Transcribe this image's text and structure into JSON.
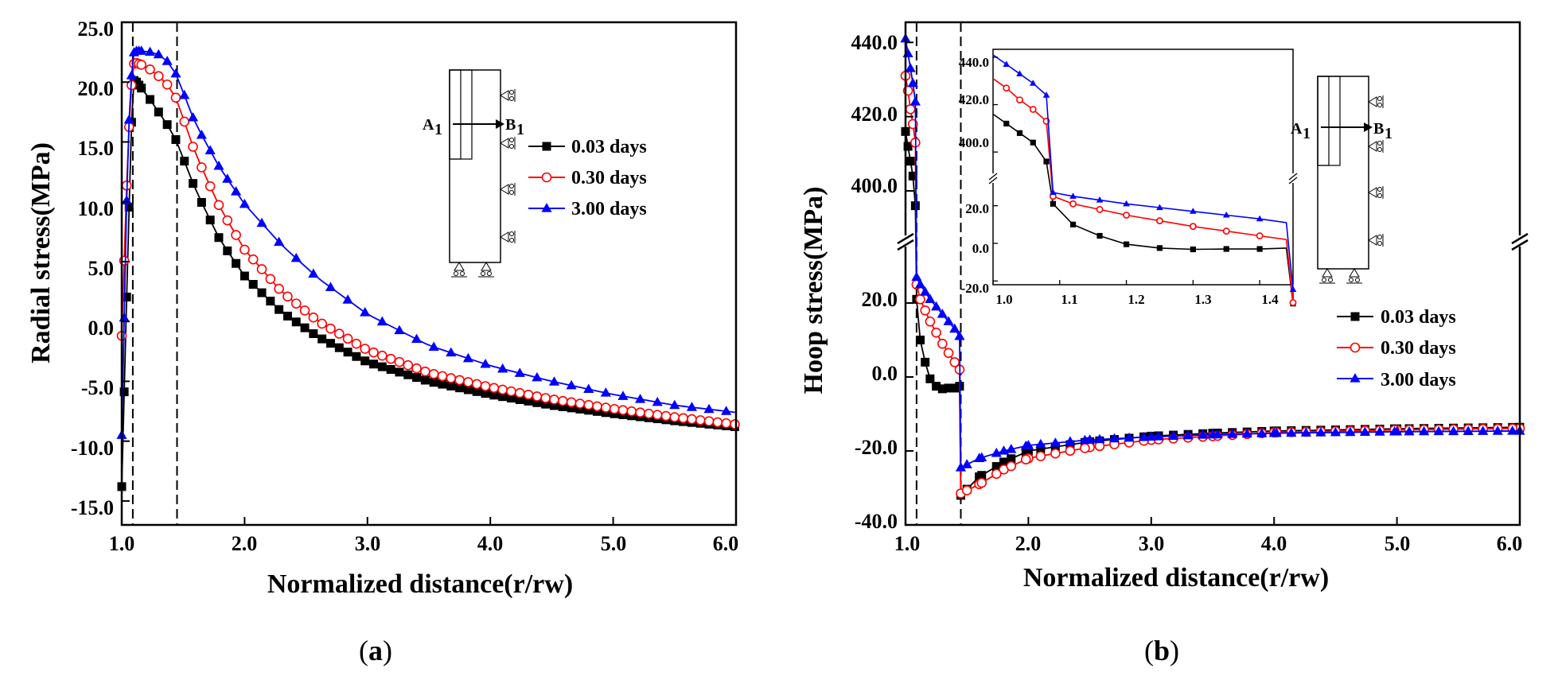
{
  "chart_data": [
    {
      "type": "line",
      "id": "a",
      "caption": "a",
      "xlabel": "Normalized distance(r/rw)",
      "ylabel": "Radial stress(MPa)",
      "xlim": [
        1.0,
        6.0
      ],
      "ylim": [
        -17.0,
        25.0
      ],
      "xticks": [
        "1.0",
        "2.0",
        "3.0",
        "4.0",
        "5.0",
        "6.0"
      ],
      "yticks": [
        "25.0",
        "20.0",
        "15.0",
        "10.0",
        "5.0",
        "0.0",
        "-5.0",
        "-10.0",
        "-15.0"
      ],
      "vlines": [
        1.09,
        1.45
      ],
      "legend": [
        "0.03 days",
        "0.30 days",
        "3.00 days"
      ],
      "series": [
        {
          "name": "0.03 days",
          "color": "#000000",
          "marker": "square",
          "x": [
            1.0,
            1.05,
            1.09,
            1.12,
            1.2,
            1.3,
            1.4,
            1.45,
            1.6,
            1.8,
            2.0,
            2.3,
            2.6,
            3.0,
            3.5,
            4.0,
            4.5,
            5.0,
            5.5,
            6.0
          ],
          "y": [
            -13.8,
            6.0,
            20.2,
            20.0,
            19.0,
            17.5,
            16.0,
            15.0,
            11.0,
            6.8,
            3.8,
            0.8,
            -1.3,
            -3.4,
            -5.0,
            -6.1,
            -7.0,
            -7.7,
            -8.3,
            -8.8
          ]
        },
        {
          "name": "0.30 days",
          "color": "#ff0000",
          "marker": "circle",
          "x": [
            1.0,
            1.05,
            1.09,
            1.12,
            1.2,
            1.3,
            1.4,
            1.45,
            1.6,
            1.8,
            2.0,
            2.3,
            2.6,
            3.0,
            3.5,
            4.0,
            4.5,
            5.0,
            5.5,
            6.0
          ],
          "y": [
            -1.2,
            14.5,
            21.5,
            21.6,
            21.3,
            20.5,
            19.5,
            18.5,
            14.0,
            9.5,
            6.0,
            2.5,
            0.0,
            -2.4,
            -4.3,
            -5.5,
            -6.5,
            -7.3,
            -8.0,
            -8.6
          ]
        },
        {
          "name": "3.00 days",
          "color": "#0000ff",
          "marker": "triangle",
          "x": [
            1.0,
            1.05,
            1.09,
            1.12,
            1.2,
            1.3,
            1.4,
            1.45,
            1.6,
            1.8,
            2.0,
            2.3,
            2.6,
            3.0,
            3.5,
            4.0,
            4.5,
            5.0,
            5.5,
            6.0
          ],
          "y": [
            -9.5,
            15.0,
            22.4,
            22.6,
            22.6,
            22.3,
            21.5,
            20.5,
            16.5,
            12.8,
            9.8,
            6.4,
            3.6,
            0.6,
            -2.0,
            -3.7,
            -5.0,
            -6.1,
            -7.0,
            -7.6
          ]
        }
      ]
    },
    {
      "type": "line",
      "id": "b",
      "caption": "b",
      "xlabel": "Normalized distance(r/rw)",
      "ylabel": "Hoop stress(MPa)",
      "xlim": [
        1.0,
        6.0
      ],
      "ylim_lower": [
        -40.0,
        40.0
      ],
      "ylim_upper": [
        385.0,
        442.0
      ],
      "xticks": [
        "1.0",
        "2.0",
        "3.0",
        "4.0",
        "5.0",
        "6.0"
      ],
      "yticks": [
        "440.0",
        "420.0",
        "400.0",
        "20.0",
        "0.0",
        "-20.0",
        "-40.0"
      ],
      "vlines": [
        1.09,
        1.45
      ],
      "legend": [
        "0.03 days",
        "0.30 days",
        "3.00 days"
      ],
      "series": [
        {
          "name": "0.03 days",
          "color": "#000000",
          "marker": "square",
          "x": [
            1.0,
            1.02,
            1.04,
            1.06,
            1.08,
            1.09,
            1.12,
            1.16,
            1.2,
            1.25,
            1.3,
            1.35,
            1.4,
            1.44,
            1.45,
            1.6,
            1.8,
            2.0,
            2.5,
            3.0,
            3.5,
            4.0,
            5.0,
            6.0
          ],
          "y": [
            416.0,
            412.0,
            408.0,
            404.0,
            396.0,
            21.0,
            10.0,
            4.0,
            -0.5,
            -2.5,
            -3.2,
            -3.0,
            -3.0,
            -2.5,
            -32.0,
            -27.0,
            -23.0,
            -20.0,
            -17.5,
            -16.0,
            -15.2,
            -14.6,
            -14.0,
            -13.6
          ]
        },
        {
          "name": "0.30 days",
          "color": "#ff0000",
          "marker": "circle",
          "x": [
            1.0,
            1.02,
            1.04,
            1.06,
            1.08,
            1.09,
            1.12,
            1.16,
            1.2,
            1.25,
            1.3,
            1.35,
            1.4,
            1.44,
            1.45,
            1.6,
            1.8,
            2.0,
            2.5,
            3.0,
            3.5,
            4.0,
            5.0,
            6.0
          ],
          "y": [
            431.0,
            427.0,
            422.0,
            418.0,
            413.0,
            25.0,
            21.0,
            18.0,
            15.0,
            12.0,
            9.0,
            6.5,
            4.0,
            2.0,
            -31.5,
            -29.0,
            -25.0,
            -22.0,
            -19.0,
            -17.0,
            -16.0,
            -15.0,
            -14.3,
            -13.9
          ]
        },
        {
          "name": "3.00 days",
          "color": "#0000ff",
          "marker": "triangle",
          "x": [
            1.0,
            1.02,
            1.04,
            1.06,
            1.08,
            1.09,
            1.12,
            1.16,
            1.2,
            1.25,
            1.3,
            1.35,
            1.4,
            1.44,
            1.45,
            1.6,
            1.8,
            2.0,
            2.5,
            3.0,
            3.5,
            4.0,
            5.0,
            6.0
          ],
          "y": [
            441.0,
            437.0,
            433.0,
            429.0,
            424.0,
            27.0,
            25.0,
            23.0,
            21.0,
            19.0,
            17.0,
            15.0,
            13.0,
            11.0,
            -24.5,
            -22.0,
            -20.0,
            -18.5,
            -17.0,
            -16.2,
            -15.6,
            -15.2,
            -14.8,
            -14.6
          ]
        }
      ],
      "inset": {
        "xlim": [
          1.0,
          1.45
        ],
        "xticks": [
          "1.0",
          "1.1",
          "1.2",
          "1.3",
          "1.4"
        ],
        "yticks": [
          "440.0",
          "420.0",
          "400.0",
          "20.0",
          "0.0",
          "-20.0"
        ]
      }
    }
  ],
  "diagram": {
    "left_label": "A",
    "right_label": "B",
    "subscript": "1"
  }
}
